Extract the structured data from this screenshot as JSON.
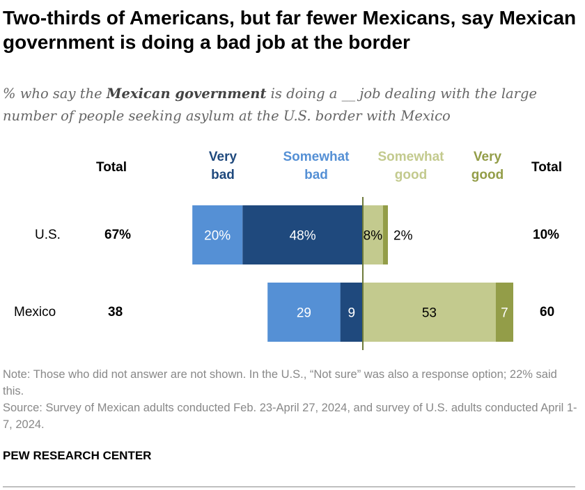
{
  "title": "Two-thirds of Americans, but far fewer Mexicans, say Mexican government is doing a bad job at the border",
  "subtitle": {
    "pre": "% who say the ",
    "bold": "Mexican government",
    "post": " is doing a __ job dealing with the large number of people seeking asylum at the U.S. border with Mexico"
  },
  "chart_data": {
    "type": "bar",
    "orientation": "horizontal-diverging",
    "categories": [
      "U.S.",
      "Mexico"
    ],
    "series": [
      {
        "name": "Very bad",
        "side": "negative",
        "color": "#1f497d",
        "values": [
          48,
          9
        ],
        "labels": [
          "48%",
          "9"
        ],
        "label_color": "#ffffff"
      },
      {
        "name": "Somewhat bad",
        "side": "negative",
        "color": "#5590d5",
        "values": [
          20,
          29
        ],
        "labels": [
          "20%",
          "29"
        ],
        "label_color": "#ffffff"
      },
      {
        "name": "Somewhat good",
        "side": "positive",
        "color": "#c3ca8e",
        "values": [
          8,
          53
        ],
        "labels": [
          "8%",
          "53"
        ],
        "label_color": "#000000"
      },
      {
        "name": "Very good",
        "side": "positive",
        "color": "#939d48",
        "values": [
          2,
          7
        ],
        "labels": [
          "2%",
          "7"
        ],
        "label_color": "#ffffff"
      }
    ],
    "headers": {
      "total_left": "Total",
      "very_bad": [
        "Very",
        "bad"
      ],
      "somewhat_bad": [
        "Somewhat",
        "bad"
      ],
      "somewhat_good": [
        "Somewhat",
        "good"
      ],
      "very_good": [
        "Very",
        "good"
      ],
      "total_right": "Total"
    },
    "totals_bad": [
      "67%",
      "38"
    ],
    "totals_good": [
      "10%",
      "60"
    ],
    "center_line_color": "#6e7a3a"
  },
  "note": "Note: Those who did not answer are not shown. In the U.S., “Not sure” was also a response option; 22% said this.",
  "source": "Source: Survey of Mexican adults conducted Feb. 23-April 27, 2024, and survey of U.S. adults conducted April 1-7, 2024.",
  "brand": "PEW RESEARCH CENTER"
}
